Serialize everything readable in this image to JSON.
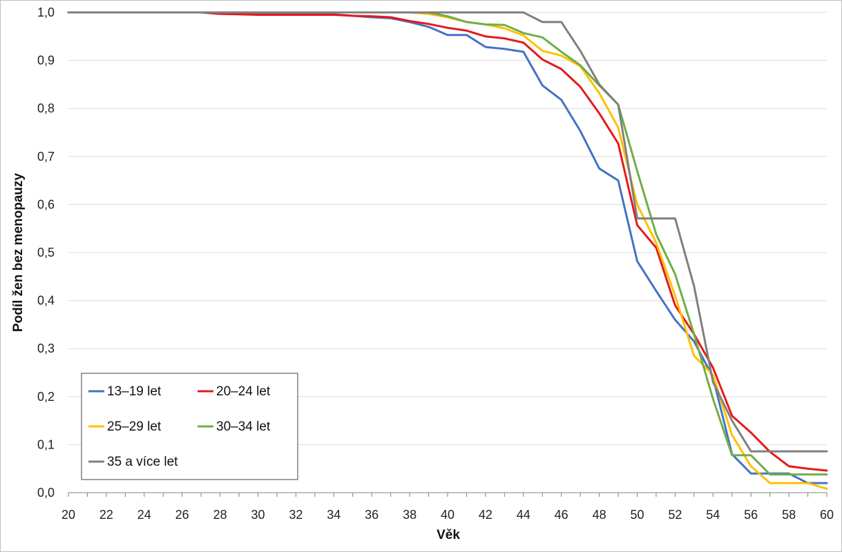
{
  "chart_data": {
    "type": "line",
    "title": "",
    "xlabel": "Věk",
    "ylabel": "Podíl žen bez menopauzy",
    "xlim": [
      20,
      60
    ],
    "ylim": [
      0,
      1
    ],
    "x_ticks": [
      "20",
      "22",
      "24",
      "26",
      "28",
      "30",
      "32",
      "34",
      "36",
      "38",
      "40",
      "42",
      "44",
      "46",
      "48",
      "50",
      "52",
      "54",
      "56",
      "58",
      "60"
    ],
    "y_ticks": [
      "0,0",
      "0,1",
      "0,2",
      "0,3",
      "0,4",
      "0,5",
      "0,6",
      "0,7",
      "0,8",
      "0,9",
      "1,0"
    ],
    "grid": "horizontal",
    "legend_position": "bottom-left",
    "x": [
      20,
      21,
      22,
      23,
      24,
      25,
      26,
      27,
      28,
      29,
      30,
      31,
      32,
      33,
      34,
      35,
      36,
      37,
      38,
      39,
      40,
      41,
      42,
      43,
      44,
      45,
      46,
      47,
      48,
      49,
      50,
      51,
      52,
      53,
      54,
      55,
      56,
      57,
      58,
      59,
      60
    ],
    "series": [
      {
        "name": "13–19 let",
        "color": "#4472c4",
        "values": [
          1.0,
          1.0,
          1.0,
          1.0,
          1.0,
          1.0,
          1.0,
          1.0,
          0.997,
          0.997,
          0.996,
          0.996,
          0.996,
          0.996,
          0.996,
          0.993,
          0.99,
          0.988,
          0.98,
          0.97,
          0.953,
          0.953,
          0.928,
          0.924,
          0.918,
          0.848,
          0.818,
          0.753,
          0.675,
          0.65,
          0.482,
          0.42,
          0.36,
          0.315,
          0.24,
          0.08,
          0.04,
          0.04,
          0.04,
          0.02,
          0.02
        ]
      },
      {
        "name": "20–24 let",
        "color": "#e31a1c",
        "values": [
          1.0,
          1.0,
          1.0,
          1.0,
          1.0,
          1.0,
          1.0,
          1.0,
          0.997,
          0.996,
          0.995,
          0.995,
          0.995,
          0.995,
          0.995,
          0.993,
          0.992,
          0.99,
          0.982,
          0.976,
          0.968,
          0.962,
          0.95,
          0.946,
          0.937,
          0.902,
          0.882,
          0.845,
          0.79,
          0.727,
          0.557,
          0.51,
          0.39,
          0.33,
          0.26,
          0.16,
          0.125,
          0.085,
          0.055,
          0.05,
          0.046
        ]
      },
      {
        "name": "25–29 let",
        "color": "#ffc000",
        "values": [
          1.0,
          1.0,
          1.0,
          1.0,
          1.0,
          1.0,
          1.0,
          1.0,
          1.0,
          1.0,
          1.0,
          1.0,
          1.0,
          1.0,
          1.0,
          1.0,
          1.0,
          1.0,
          1.0,
          0.997,
          0.99,
          0.98,
          0.975,
          0.967,
          0.952,
          0.92,
          0.91,
          0.888,
          0.832,
          0.76,
          0.6,
          0.52,
          0.41,
          0.285,
          0.245,
          0.12,
          0.055,
          0.02,
          0.02,
          0.02,
          0.008
        ]
      },
      {
        "name": "30–34 let",
        "color": "#70ad47",
        "values": [
          1.0,
          1.0,
          1.0,
          1.0,
          1.0,
          1.0,
          1.0,
          1.0,
          1.0,
          1.0,
          1.0,
          1.0,
          1.0,
          1.0,
          1.0,
          1.0,
          1.0,
          1.0,
          1.0,
          1.0,
          0.992,
          0.98,
          0.975,
          0.974,
          0.957,
          0.948,
          0.918,
          0.89,
          0.848,
          0.808,
          0.67,
          0.538,
          0.455,
          0.33,
          0.195,
          0.078,
          0.078,
          0.038,
          0.038,
          0.038,
          0.038
        ]
      },
      {
        "name": "35 a více let",
        "color": "#7f7f7f",
        "values": [
          1.0,
          1.0,
          1.0,
          1.0,
          1.0,
          1.0,
          1.0,
          1.0,
          1.0,
          1.0,
          1.0,
          1.0,
          1.0,
          1.0,
          1.0,
          1.0,
          1.0,
          1.0,
          1.0,
          1.0,
          1.0,
          1.0,
          1.0,
          1.0,
          1.0,
          0.98,
          0.98,
          0.92,
          0.85,
          0.808,
          0.571,
          0.571,
          0.571,
          0.43,
          0.23,
          0.15,
          0.086,
          0.086,
          0.086,
          0.086,
          0.086
        ]
      }
    ]
  }
}
